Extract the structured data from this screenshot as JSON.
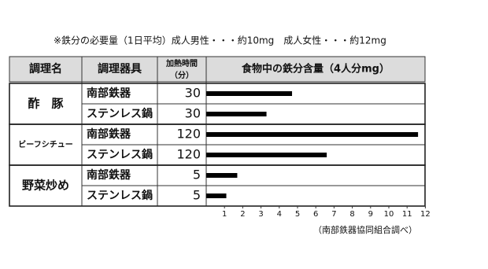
{
  "chart_data": {
    "type": "bar",
    "note": "※鉄分の必要量（1日平均）成人男性・・・約10mg　成人女性・・・約12mg",
    "headers": [
      "調理名",
      "調理器具",
      "加熱時間",
      "（分）",
      "食物中の鉄分含量（4人分mg）"
    ],
    "dishes": [
      "酢　豚",
      "ビーフシチュー",
      "野菜炒め"
    ],
    "categories": [
      "南部鉄器",
      "ステンレス鍋",
      "南部鉄器",
      "ステンレス鍋",
      "南部鉄器",
      "ステンレス鍋"
    ],
    "times": [
      30,
      30,
      120,
      120,
      5,
      5
    ],
    "values": [
      4.7,
      3.3,
      11.6,
      6.6,
      1.7,
      1.1
    ],
    "color": "#000000",
    "xlim": [
      0,
      12
    ],
    "xticks": [
      1,
      2,
      3,
      4,
      5,
      6,
      7,
      8,
      9,
      10,
      11,
      12
    ],
    "source": "（南部鉄器協同組合調べ）"
  }
}
